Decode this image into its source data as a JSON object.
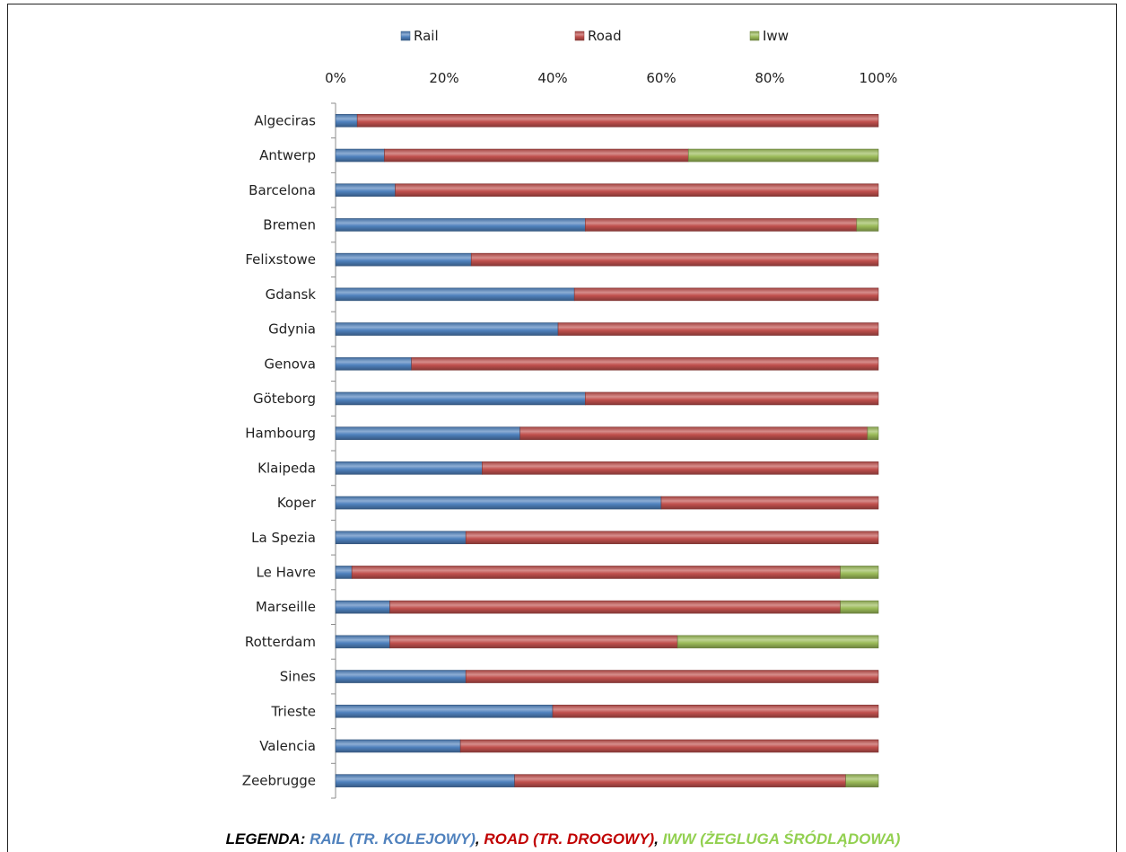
{
  "chart_data": {
    "type": "bar",
    "orientation": "horizontal",
    "stacked": "percent",
    "title": "",
    "xlabel": "",
    "ylabel": "",
    "xlim": [
      0,
      100
    ],
    "x_ticks": [
      "0%",
      "20%",
      "40%",
      "60%",
      "80%",
      "100%"
    ],
    "x_axis_position": "top",
    "grid": false,
    "legend_position": "top",
    "categories": [
      "Algeciras",
      "Antwerp",
      "Barcelona",
      "Bremen",
      "Felixstowe",
      "Gdansk",
      "Gdynia",
      "Genova",
      "Göteborg",
      "Hambourg",
      "Klaipeda",
      "Koper",
      "La Spezia",
      "Le Havre",
      "Marseille",
      "Rotterdam",
      "Sines",
      "Trieste",
      "Valencia",
      "Zeebrugge"
    ],
    "series": [
      {
        "name": "Rail",
        "color": "#4f81bd",
        "values": [
          4,
          9,
          11,
          46,
          25,
          44,
          41,
          14,
          46,
          34,
          27,
          60,
          24,
          3,
          10,
          10,
          24,
          40,
          23,
          33
        ]
      },
      {
        "name": "Road",
        "color": "#c0504d",
        "values": [
          96,
          56,
          89,
          50,
          75,
          56,
          59,
          86,
          54,
          64,
          73,
          40,
          76,
          90,
          83,
          53,
          76,
          60,
          77,
          61
        ]
      },
      {
        "name": "Iww",
        "color": "#9bbb59",
        "values": [
          0,
          35,
          0,
          4,
          0,
          0,
          0,
          0,
          0,
          2,
          0,
          0,
          0,
          7,
          7,
          37,
          0,
          0,
          0,
          6
        ]
      }
    ]
  },
  "footer": {
    "prefix": "LEGENDA:",
    "rail": "RAIL (TR. KOLEJOWY)",
    "road": "ROAD (TR. DROGOWY)",
    "iww": "IWW (ŻEGLUGA ŚRÓDLĄDOWA)",
    "separator": ",",
    "rail_color": "#4f81bd",
    "road_color": "#c00000",
    "iww_color": "#92d050"
  }
}
